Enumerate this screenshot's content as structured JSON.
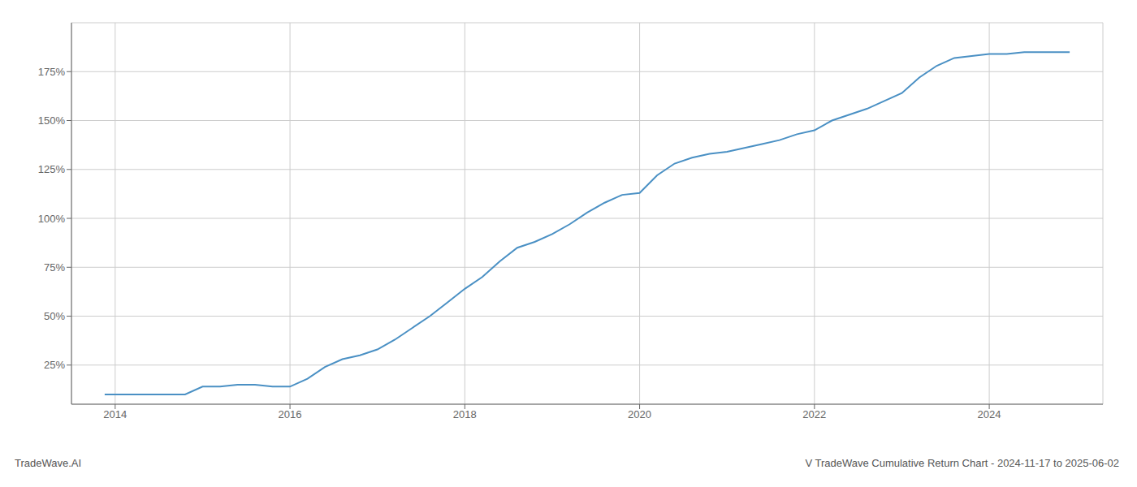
{
  "chart_data": {
    "type": "line",
    "title": "V TradeWave Cumulative Return Chart - 2024-11-17 to 2025-06-02",
    "annotations": [
      "TradeWave.AI"
    ],
    "x": [
      2013.88,
      2014.0,
      2014.2,
      2014.4,
      2014.6,
      2014.8,
      2015.0,
      2015.2,
      2015.4,
      2015.6,
      2015.8,
      2016.0,
      2016.2,
      2016.4,
      2016.6,
      2016.8,
      2017.0,
      2017.2,
      2017.4,
      2017.6,
      2017.8,
      2018.0,
      2018.2,
      2018.4,
      2018.6,
      2018.8,
      2019.0,
      2019.2,
      2019.4,
      2019.6,
      2019.8,
      2020.0,
      2020.2,
      2020.4,
      2020.6,
      2020.8,
      2021.0,
      2021.2,
      2021.4,
      2021.6,
      2021.8,
      2022.0,
      2022.2,
      2022.4,
      2022.6,
      2022.8,
      2023.0,
      2023.2,
      2023.4,
      2023.6,
      2023.8,
      2024.0,
      2024.2,
      2024.4,
      2024.6,
      2024.8,
      2024.92
    ],
    "values": [
      10,
      10,
      10,
      10,
      10,
      10,
      14,
      14,
      15,
      15,
      14,
      14,
      18,
      24,
      28,
      30,
      33,
      38,
      44,
      50,
      57,
      64,
      70,
      78,
      85,
      88,
      92,
      97,
      103,
      108,
      112,
      113,
      122,
      128,
      131,
      133,
      134,
      136,
      138,
      140,
      143,
      145,
      150,
      153,
      156,
      160,
      164,
      172,
      178,
      182,
      183,
      184,
      184,
      185,
      185,
      185,
      185
    ],
    "color": "#4a90c4",
    "xlim": [
      2013.5,
      2025.3
    ],
    "ylim": [
      5,
      200
    ],
    "xticks": [
      2014,
      2016,
      2018,
      2020,
      2022,
      2024
    ],
    "yticks": [
      {
        "value": 25,
        "label": "25%"
      },
      {
        "value": 50,
        "label": "50%"
      },
      {
        "value": 75,
        "label": "75%"
      },
      {
        "value": 100,
        "label": "100%"
      },
      {
        "value": 125,
        "label": "125%"
      },
      {
        "value": 150,
        "label": "150%"
      },
      {
        "value": 175,
        "label": "175%"
      }
    ],
    "grid": true
  }
}
